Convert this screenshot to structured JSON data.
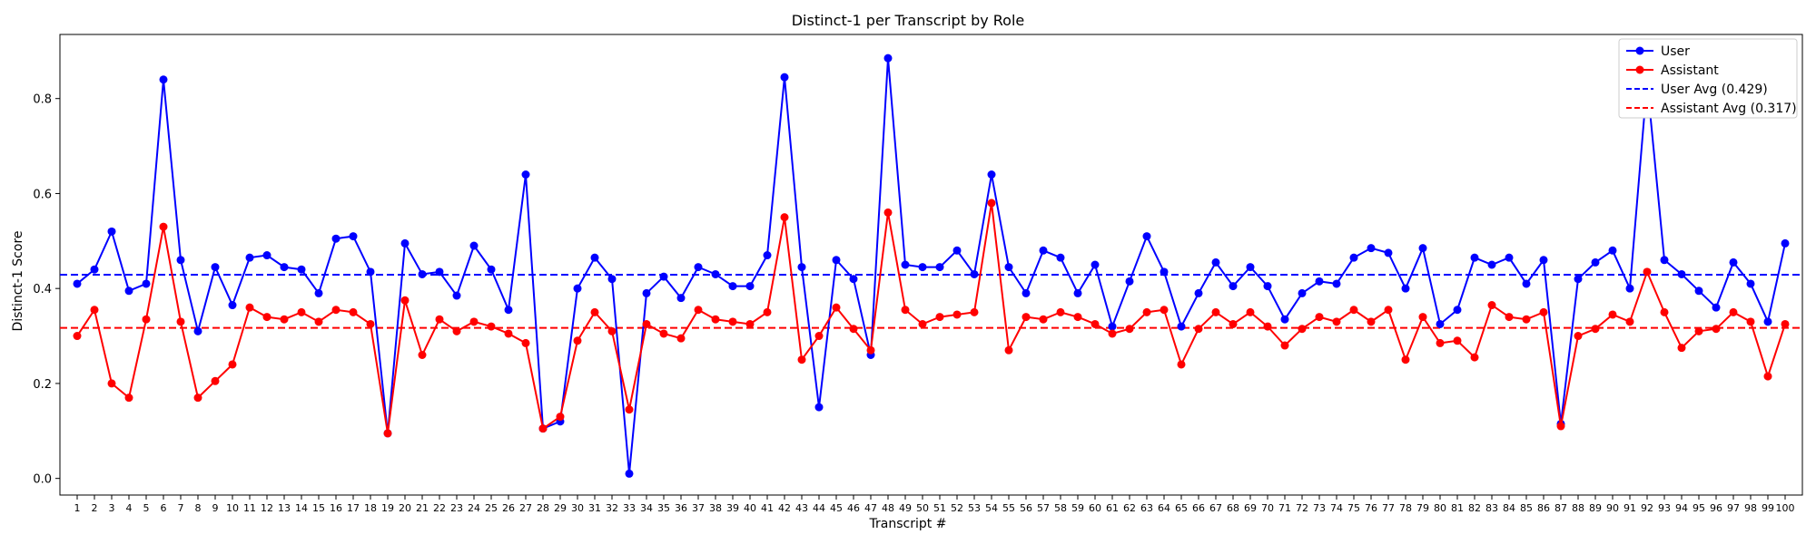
{
  "chart_data": {
    "type": "line",
    "title": "Distinct-1 per Transcript by Role",
    "xlabel": "Transcript #",
    "ylabel": "Distinct-1 Score",
    "ylim": [
      -0.035,
      0.935
    ],
    "yticks": [
      "0.0",
      "0.2",
      "0.4",
      "0.6",
      "0.8"
    ],
    "grid": false,
    "legend_position": "top-right",
    "categories": [
      "1",
      "2",
      "3",
      "4",
      "5",
      "6",
      "7",
      "8",
      "9",
      "10",
      "11",
      "12",
      "13",
      "14",
      "15",
      "16",
      "17",
      "18",
      "19",
      "20",
      "21",
      "22",
      "23",
      "24",
      "25",
      "26",
      "27",
      "28",
      "29",
      "30",
      "31",
      "32",
      "33",
      "34",
      "35",
      "36",
      "37",
      "38",
      "39",
      "40",
      "41",
      "42",
      "43",
      "44",
      "45",
      "46",
      "47",
      "48",
      "49",
      "50",
      "51",
      "52",
      "53",
      "54",
      "55",
      "56",
      "57",
      "58",
      "59",
      "60",
      "61",
      "62",
      "63",
      "64",
      "65",
      "66",
      "67",
      "68",
      "69",
      "70",
      "71",
      "72",
      "73",
      "74",
      "75",
      "76",
      "77",
      "78",
      "79",
      "80",
      "81",
      "82",
      "83",
      "84",
      "85",
      "86",
      "87",
      "88",
      "89",
      "90",
      "91",
      "92",
      "93",
      "94",
      "95",
      "96",
      "97",
      "98",
      "99",
      "100"
    ],
    "series": [
      {
        "name": "User",
        "color": "#0000ff",
        "values": [
          0.41,
          0.44,
          0.52,
          0.395,
          0.41,
          0.84,
          0.46,
          0.31,
          0.445,
          0.365,
          0.465,
          0.47,
          0.445,
          0.44,
          0.39,
          0.505,
          0.51,
          0.435,
          0.095,
          0.495,
          0.43,
          0.435,
          0.385,
          0.49,
          0.44,
          0.355,
          0.64,
          0.105,
          0.12,
          0.4,
          0.465,
          0.42,
          0.01,
          0.39,
          0.425,
          0.38,
          0.445,
          0.43,
          0.405,
          0.405,
          0.47,
          0.845,
          0.445,
          0.15,
          0.46,
          0.42,
          0.26,
          0.885,
          0.45,
          0.445,
          0.445,
          0.48,
          0.43,
          0.64,
          0.445,
          0.39,
          0.48,
          0.465,
          0.39,
          0.45,
          0.32,
          0.415,
          0.51,
          0.435,
          0.32,
          0.39,
          0.455,
          0.405,
          0.445,
          0.405,
          0.335,
          0.39,
          0.415,
          0.41,
          0.465,
          0.485,
          0.475,
          0.4,
          0.485,
          0.325,
          0.355,
          0.465,
          0.45,
          0.465,
          0.41,
          0.46,
          0.115,
          0.42,
          0.455,
          0.48,
          0.4,
          0.835,
          0.46,
          0.43,
          0.395,
          0.36,
          0.455,
          0.41,
          0.33,
          0.495
        ]
      },
      {
        "name": "Assistant",
        "color": "#ff0000",
        "values": [
          0.3,
          0.355,
          0.2,
          0.17,
          0.335,
          0.53,
          0.33,
          0.17,
          0.205,
          0.24,
          0.36,
          0.34,
          0.335,
          0.35,
          0.33,
          0.355,
          0.35,
          0.325,
          0.095,
          0.375,
          0.26,
          0.335,
          0.31,
          0.33,
          0.32,
          0.305,
          0.285,
          0.105,
          0.13,
          0.29,
          0.35,
          0.31,
          0.145,
          0.325,
          0.305,
          0.295,
          0.355,
          0.335,
          0.33,
          0.325,
          0.35,
          0.55,
          0.25,
          0.3,
          0.36,
          0.315,
          0.27,
          0.56,
          0.355,
          0.325,
          0.34,
          0.345,
          0.35,
          0.58,
          0.27,
          0.34,
          0.335,
          0.35,
          0.34,
          0.325,
          0.305,
          0.315,
          0.35,
          0.355,
          0.24,
          0.315,
          0.35,
          0.325,
          0.35,
          0.32,
          0.28,
          0.315,
          0.34,
          0.33,
          0.355,
          0.33,
          0.355,
          0.25,
          0.34,
          0.285,
          0.29,
          0.255,
          0.365,
          0.34,
          0.335,
          0.35,
          0.11,
          0.3,
          0.315,
          0.345,
          0.33,
          0.435,
          0.35,
          0.275,
          0.31,
          0.315,
          0.35,
          0.33,
          0.215,
          0.325
        ]
      }
    ],
    "reference_lines": [
      {
        "name": "User Avg (0.429)",
        "value": 0.429,
        "color": "#0000ff",
        "style": "dashed"
      },
      {
        "name": "Assistant Avg (0.317)",
        "value": 0.317,
        "color": "#ff0000",
        "style": "dashed"
      }
    ]
  }
}
